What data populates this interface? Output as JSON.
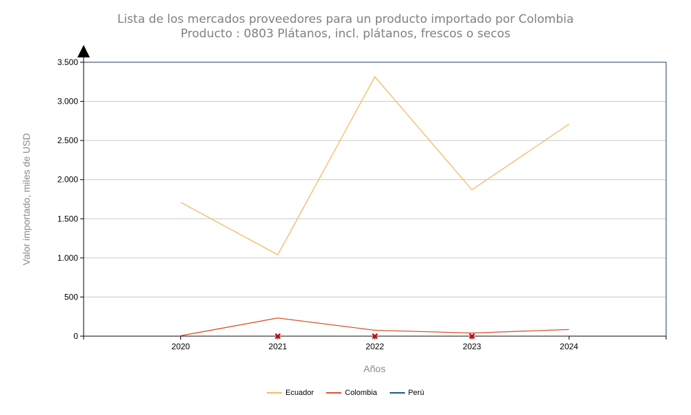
{
  "chart_data": {
    "type": "line",
    "title": "Lista de los mercados proveedores para un producto importado por Colombia",
    "subtitle": "Producto : 0803 Plátanos, incl. plátanos, frescos o secos",
    "xlabel": "Años",
    "ylabel": "Valor importado, miles de USD",
    "x": [
      2020,
      2021,
      2022,
      2023,
      2024
    ],
    "x_tick_labels": [
      "2020",
      "2021",
      "2022",
      "2023",
      "2024"
    ],
    "ylim": [
      0,
      3500
    ],
    "y_ticks": [
      0,
      500,
      1000,
      1500,
      2000,
      2500,
      3000,
      3500
    ],
    "y_tick_labels": [
      "0",
      "500",
      "1.000",
      "1.500",
      "2.000",
      "2.500",
      "3.000",
      "3.500"
    ],
    "grid": true,
    "legend_position": "bottom",
    "series": [
      {
        "name": "Ecuador",
        "color": "#f5b962",
        "values": [
          1710,
          1040,
          3315,
          1870,
          2710
        ]
      },
      {
        "name": "Colombia",
        "color": "#d9532b",
        "values": [
          5,
          232,
          75,
          40,
          85
        ]
      },
      {
        "name": "Perú",
        "color": "#1a5a8a",
        "values": [
          0,
          0,
          0,
          0,
          0
        ]
      }
    ],
    "markers": {
      "series": "Perú",
      "color": "#cc0000",
      "x": [
        2021,
        2022,
        2023
      ]
    }
  }
}
